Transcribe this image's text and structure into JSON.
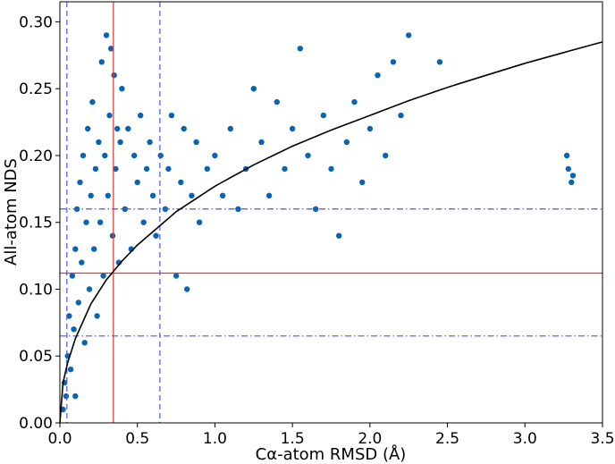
{
  "chart_data": {
    "type": "scatter",
    "title": "",
    "xlabel": "Cα-atom RMSD (Å)",
    "ylabel": "All-atom NDS",
    "xlim": [
      0.0,
      3.5
    ],
    "ylim": [
      0.0,
      0.315
    ],
    "x_ticks": [
      "0.0",
      "0.5",
      "1.0",
      "1.5",
      "2.0",
      "2.5",
      "3.0",
      "3.5"
    ],
    "x_tick_values": [
      0.0,
      0.5,
      1.0,
      1.5,
      2.0,
      2.5,
      3.0,
      3.5
    ],
    "y_ticks": [
      "0.00",
      "0.05",
      "0.10",
      "0.15",
      "0.20",
      "0.25",
      "0.30"
    ],
    "y_tick_values": [
      0.0,
      0.05,
      0.1,
      0.15,
      0.2,
      0.25,
      0.3
    ],
    "grid": false,
    "point_color": "#0b63b4",
    "fit_curve": {
      "color": "#000000",
      "points": [
        [
          0.0,
          0.0
        ],
        [
          0.02,
          0.03
        ],
        [
          0.05,
          0.045
        ],
        [
          0.1,
          0.063
        ],
        [
          0.2,
          0.089
        ],
        [
          0.3,
          0.107
        ],
        [
          0.4,
          0.121
        ],
        [
          0.5,
          0.133
        ],
        [
          0.75,
          0.158
        ],
        [
          1.0,
          0.177
        ],
        [
          1.25,
          0.193
        ],
        [
          1.5,
          0.207
        ],
        [
          1.75,
          0.219
        ],
        [
          2.0,
          0.23
        ],
        [
          2.25,
          0.241
        ],
        [
          2.5,
          0.251
        ],
        [
          2.75,
          0.26
        ],
        [
          3.0,
          0.269
        ],
        [
          3.25,
          0.277
        ],
        [
          3.5,
          0.285
        ]
      ]
    },
    "vertical_lines": [
      {
        "x": 0.045,
        "color": "#4a5ad8",
        "style": "dashed"
      },
      {
        "x": 0.345,
        "color": "#e8312a",
        "style": "solid"
      },
      {
        "x": 0.645,
        "color": "#4a5ad8",
        "style": "dashed"
      }
    ],
    "horizontal_lines": [
      {
        "y": 0.16,
        "color": "#4a5ad8",
        "style": "dashdot"
      },
      {
        "y": 0.112,
        "color": "#e8312a",
        "style": "solid"
      },
      {
        "y": 0.065,
        "color": "#4a5ad8",
        "style": "dashdot"
      }
    ],
    "series": [
      {
        "points_estimated": [
          [
            0.02,
            0.01
          ],
          [
            0.03,
            0.03
          ],
          [
            0.04,
            0.02
          ],
          [
            0.05,
            0.05
          ],
          [
            0.06,
            0.08
          ],
          [
            0.07,
            0.04
          ],
          [
            0.08,
            0.11
          ],
          [
            0.09,
            0.07
          ],
          [
            0.1,
            0.13
          ],
          [
            0.1,
            0.02
          ],
          [
            0.11,
            0.16
          ],
          [
            0.12,
            0.09
          ],
          [
            0.13,
            0.18
          ],
          [
            0.14,
            0.12
          ],
          [
            0.15,
            0.2
          ],
          [
            0.16,
            0.06
          ],
          [
            0.17,
            0.15
          ],
          [
            0.18,
            0.22
          ],
          [
            0.19,
            0.1
          ],
          [
            0.2,
            0.17
          ],
          [
            0.21,
            0.24
          ],
          [
            0.22,
            0.13
          ],
          [
            0.23,
            0.19
          ],
          [
            0.24,
            0.08
          ],
          [
            0.25,
            0.21
          ],
          [
            0.26,
            0.15
          ],
          [
            0.27,
            0.27
          ],
          [
            0.28,
            0.11
          ],
          [
            0.29,
            0.2
          ],
          [
            0.3,
            0.29
          ],
          [
            0.31,
            0.17
          ],
          [
            0.32,
            0.23
          ],
          [
            0.33,
            0.28
          ],
          [
            0.34,
            0.14
          ],
          [
            0.35,
            0.26
          ],
          [
            0.36,
            0.19
          ],
          [
            0.37,
            0.22
          ],
          [
            0.38,
            0.12
          ],
          [
            0.39,
            0.21
          ],
          [
            0.4,
            0.25
          ],
          [
            0.42,
            0.16
          ],
          [
            0.44,
            0.22
          ],
          [
            0.46,
            0.13
          ],
          [
            0.48,
            0.2
          ],
          [
            0.5,
            0.18
          ],
          [
            0.52,
            0.23
          ],
          [
            0.54,
            0.15
          ],
          [
            0.56,
            0.19
          ],
          [
            0.58,
            0.21
          ],
          [
            0.6,
            0.17
          ],
          [
            0.62,
            0.14
          ],
          [
            0.65,
            0.2
          ],
          [
            0.68,
            0.16
          ],
          [
            0.7,
            0.19
          ],
          [
            0.72,
            0.23
          ],
          [
            0.75,
            0.11
          ],
          [
            0.78,
            0.18
          ],
          [
            0.8,
            0.22
          ],
          [
            0.82,
            0.1
          ],
          [
            0.85,
            0.17
          ],
          [
            0.88,
            0.21
          ],
          [
            0.9,
            0.15
          ],
          [
            0.95,
            0.19
          ],
          [
            1.0,
            0.2
          ],
          [
            1.05,
            0.17
          ],
          [
            1.1,
            0.22
          ],
          [
            1.15,
            0.16
          ],
          [
            1.2,
            0.19
          ],
          [
            1.25,
            0.25
          ],
          [
            1.3,
            0.21
          ],
          [
            1.35,
            0.17
          ],
          [
            1.4,
            0.24
          ],
          [
            1.45,
            0.19
          ],
          [
            1.5,
            0.22
          ],
          [
            1.55,
            0.28
          ],
          [
            1.6,
            0.2
          ],
          [
            1.65,
            0.16
          ],
          [
            1.7,
            0.23
          ],
          [
            1.75,
            0.19
          ],
          [
            1.8,
            0.14
          ],
          [
            1.85,
            0.21
          ],
          [
            1.9,
            0.24
          ],
          [
            1.95,
            0.18
          ],
          [
            2.0,
            0.22
          ],
          [
            2.05,
            0.26
          ],
          [
            2.1,
            0.2
          ],
          [
            2.15,
            0.27
          ],
          [
            2.2,
            0.23
          ],
          [
            2.25,
            0.29
          ],
          [
            2.45,
            0.27
          ],
          [
            3.27,
            0.2
          ],
          [
            3.28,
            0.19
          ],
          [
            3.3,
            0.18
          ],
          [
            3.31,
            0.185
          ]
        ]
      }
    ]
  }
}
